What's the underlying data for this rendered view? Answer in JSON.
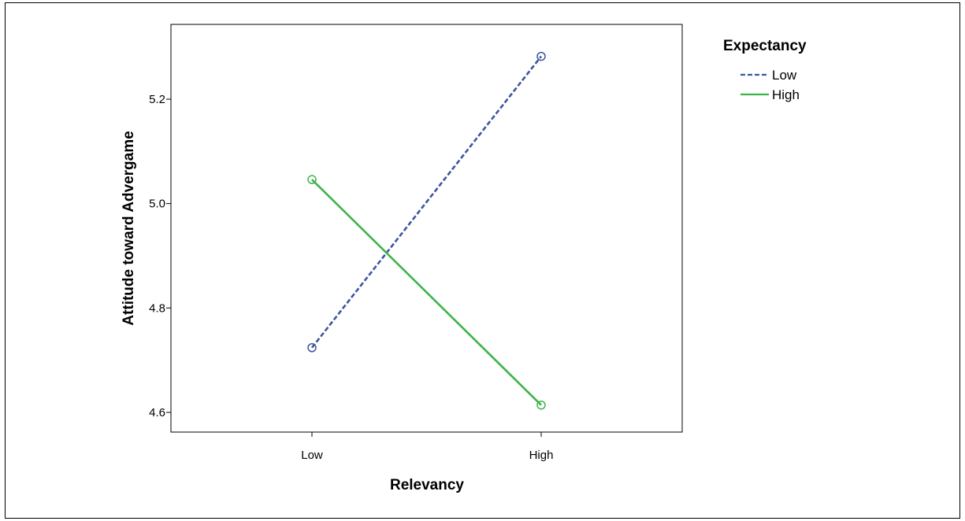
{
  "chart_data": {
    "type": "line",
    "title": "",
    "xlabel": "Relevancy",
    "ylabel": "Attitude toward Advergame",
    "categories": [
      "Low",
      "High"
    ],
    "yticks": [
      "4.6",
      "4.8",
      "5.0",
      "5.2"
    ],
    "ytick_values": [
      4.6,
      4.8,
      5.0,
      5.2
    ],
    "ylim": [
      4.5,
      5.35
    ],
    "grid": false,
    "legend": {
      "title": "Expectancy",
      "placement": "right",
      "entries": [
        "Low",
        "High"
      ]
    },
    "series": [
      {
        "name": "Low",
        "values": [
          4.724,
          5.282
        ],
        "color": "#3d55a0",
        "style": "dashed",
        "marker": "open-circle"
      },
      {
        "name": "High",
        "values": [
          5.046,
          4.614
        ],
        "color": "#3cb44a",
        "style": "solid",
        "marker": "open-circle"
      }
    ]
  }
}
